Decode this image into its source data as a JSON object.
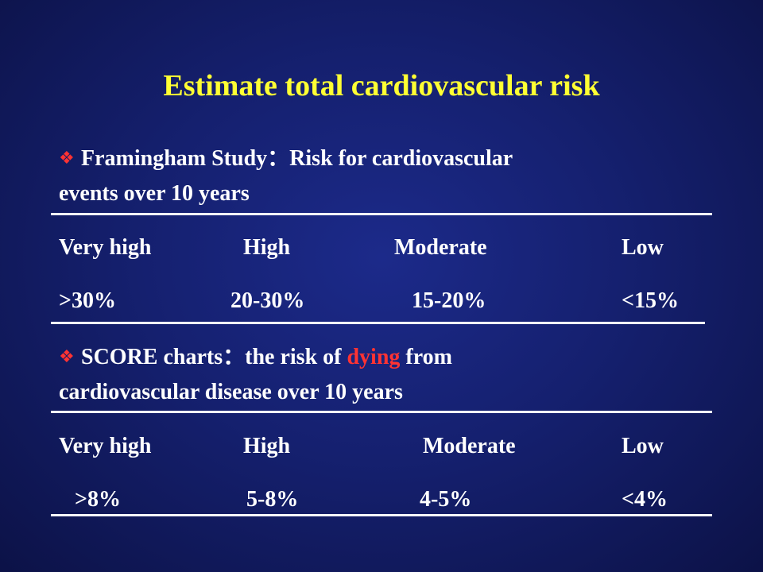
{
  "title": "Estimate total cardiovascular risk",
  "framingham": {
    "bullet_icon": "diamond-bullet-icon",
    "name": "Framingham Study",
    "separator": "：",
    "description_line1": "Risk for cardiovascular",
    "description_line2": "events over 10 years",
    "levels": [
      "Very high",
      "High",
      "Moderate",
      "Low"
    ],
    "values": [
      ">30%",
      "20-30%",
      "15-20%",
      "<15%"
    ]
  },
  "score": {
    "bullet_icon": "diamond-bullet-icon",
    "name": "SCORE charts",
    "separator": "：",
    "description_before": "the risk of",
    "highlight_word": "dying",
    "description_after": "from",
    "description_line2": "cardiovascular disease over 10 years",
    "levels": [
      "Very high",
      "High",
      "Moderate",
      "Low"
    ],
    "values": [
      ">8%",
      "5-8%",
      "4-5%",
      "<4%"
    ]
  },
  "colors": {
    "background": "#15206f",
    "title": "#ffff33",
    "text": "#ffffff",
    "accent": "#ff3333"
  }
}
